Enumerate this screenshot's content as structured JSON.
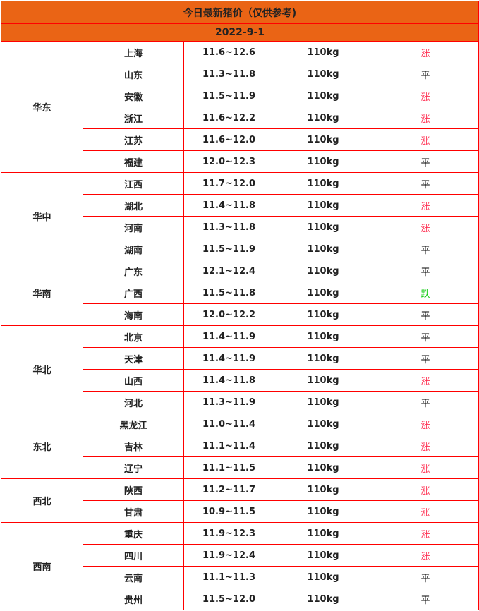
{
  "title": "今日最新猪价（仅供参考)",
  "date": "2022-9-1",
  "colors": {
    "header_bg": "#ea6415",
    "border": "#ff0000",
    "涨": "#ff3355",
    "跌": "#11cc11",
    "平": "#000000"
  },
  "regions": [
    {
      "name": "华东",
      "rows": [
        [
          "上海",
          "11.6~12.6",
          "110kg",
          "涨"
        ],
        [
          "山东",
          "11.3~11.8",
          "110kg",
          "平"
        ],
        [
          "安徽",
          "11.5~11.9",
          "110kg",
          "涨"
        ],
        [
          "浙江",
          "11.6~12.2",
          "110kg",
          "涨"
        ],
        [
          "江苏",
          "11.6~12.0",
          "110kg",
          "涨"
        ],
        [
          "福建",
          "12.0~12.3",
          "110kg",
          "平"
        ]
      ]
    },
    {
      "name": "华中",
      "rows": [
        [
          "江西",
          "11.7~12.0",
          "110kg",
          "平"
        ],
        [
          "湖北",
          "11.4~11.8",
          "110kg",
          "涨"
        ],
        [
          "河南",
          "11.3~11.8",
          "110kg",
          "涨"
        ],
        [
          "湖南",
          "11.5~11.9",
          "110kg",
          "平"
        ]
      ]
    },
    {
      "name": "华南",
      "rows": [
        [
          "广东",
          "12.1~12.4",
          "110kg",
          "平"
        ],
        [
          "广西",
          "11.5~11.8",
          "110kg",
          "跌"
        ],
        [
          "海南",
          "12.0~12.2",
          "110kg",
          "平"
        ]
      ]
    },
    {
      "name": "华北",
      "rows": [
        [
          "北京",
          "11.4~11.9",
          "110kg",
          "平"
        ],
        [
          "天津",
          "11.4~11.9",
          "110kg",
          "平"
        ],
        [
          "山西",
          "11.4~11.8",
          "110kg",
          "涨"
        ],
        [
          "河北",
          "11.3~11.9",
          "110kg",
          "平"
        ]
      ]
    },
    {
      "name": "东北",
      "rows": [
        [
          "黑龙江",
          "11.0~11.4",
          "110kg",
          "涨"
        ],
        [
          "吉林",
          "11.1~11.4",
          "110kg",
          "涨"
        ],
        [
          "辽宁",
          "11.1~11.5",
          "110kg",
          "涨"
        ]
      ]
    },
    {
      "name": "西北",
      "rows": [
        [
          "陕西",
          "11.2~11.7",
          "110kg",
          "涨"
        ],
        [
          "甘肃",
          "10.9~11.5",
          "110kg",
          "涨"
        ]
      ]
    },
    {
      "name": "西南",
      "rows": [
        [
          "重庆",
          "11.9~12.3",
          "110kg",
          "涨"
        ],
        [
          "四川",
          "11.9~12.4",
          "110kg",
          "涨"
        ],
        [
          "云南",
          "11.1~11.3",
          "110kg",
          "平"
        ],
        [
          "贵州",
          "11.5~12.0",
          "110kg",
          "平"
        ]
      ]
    }
  ]
}
